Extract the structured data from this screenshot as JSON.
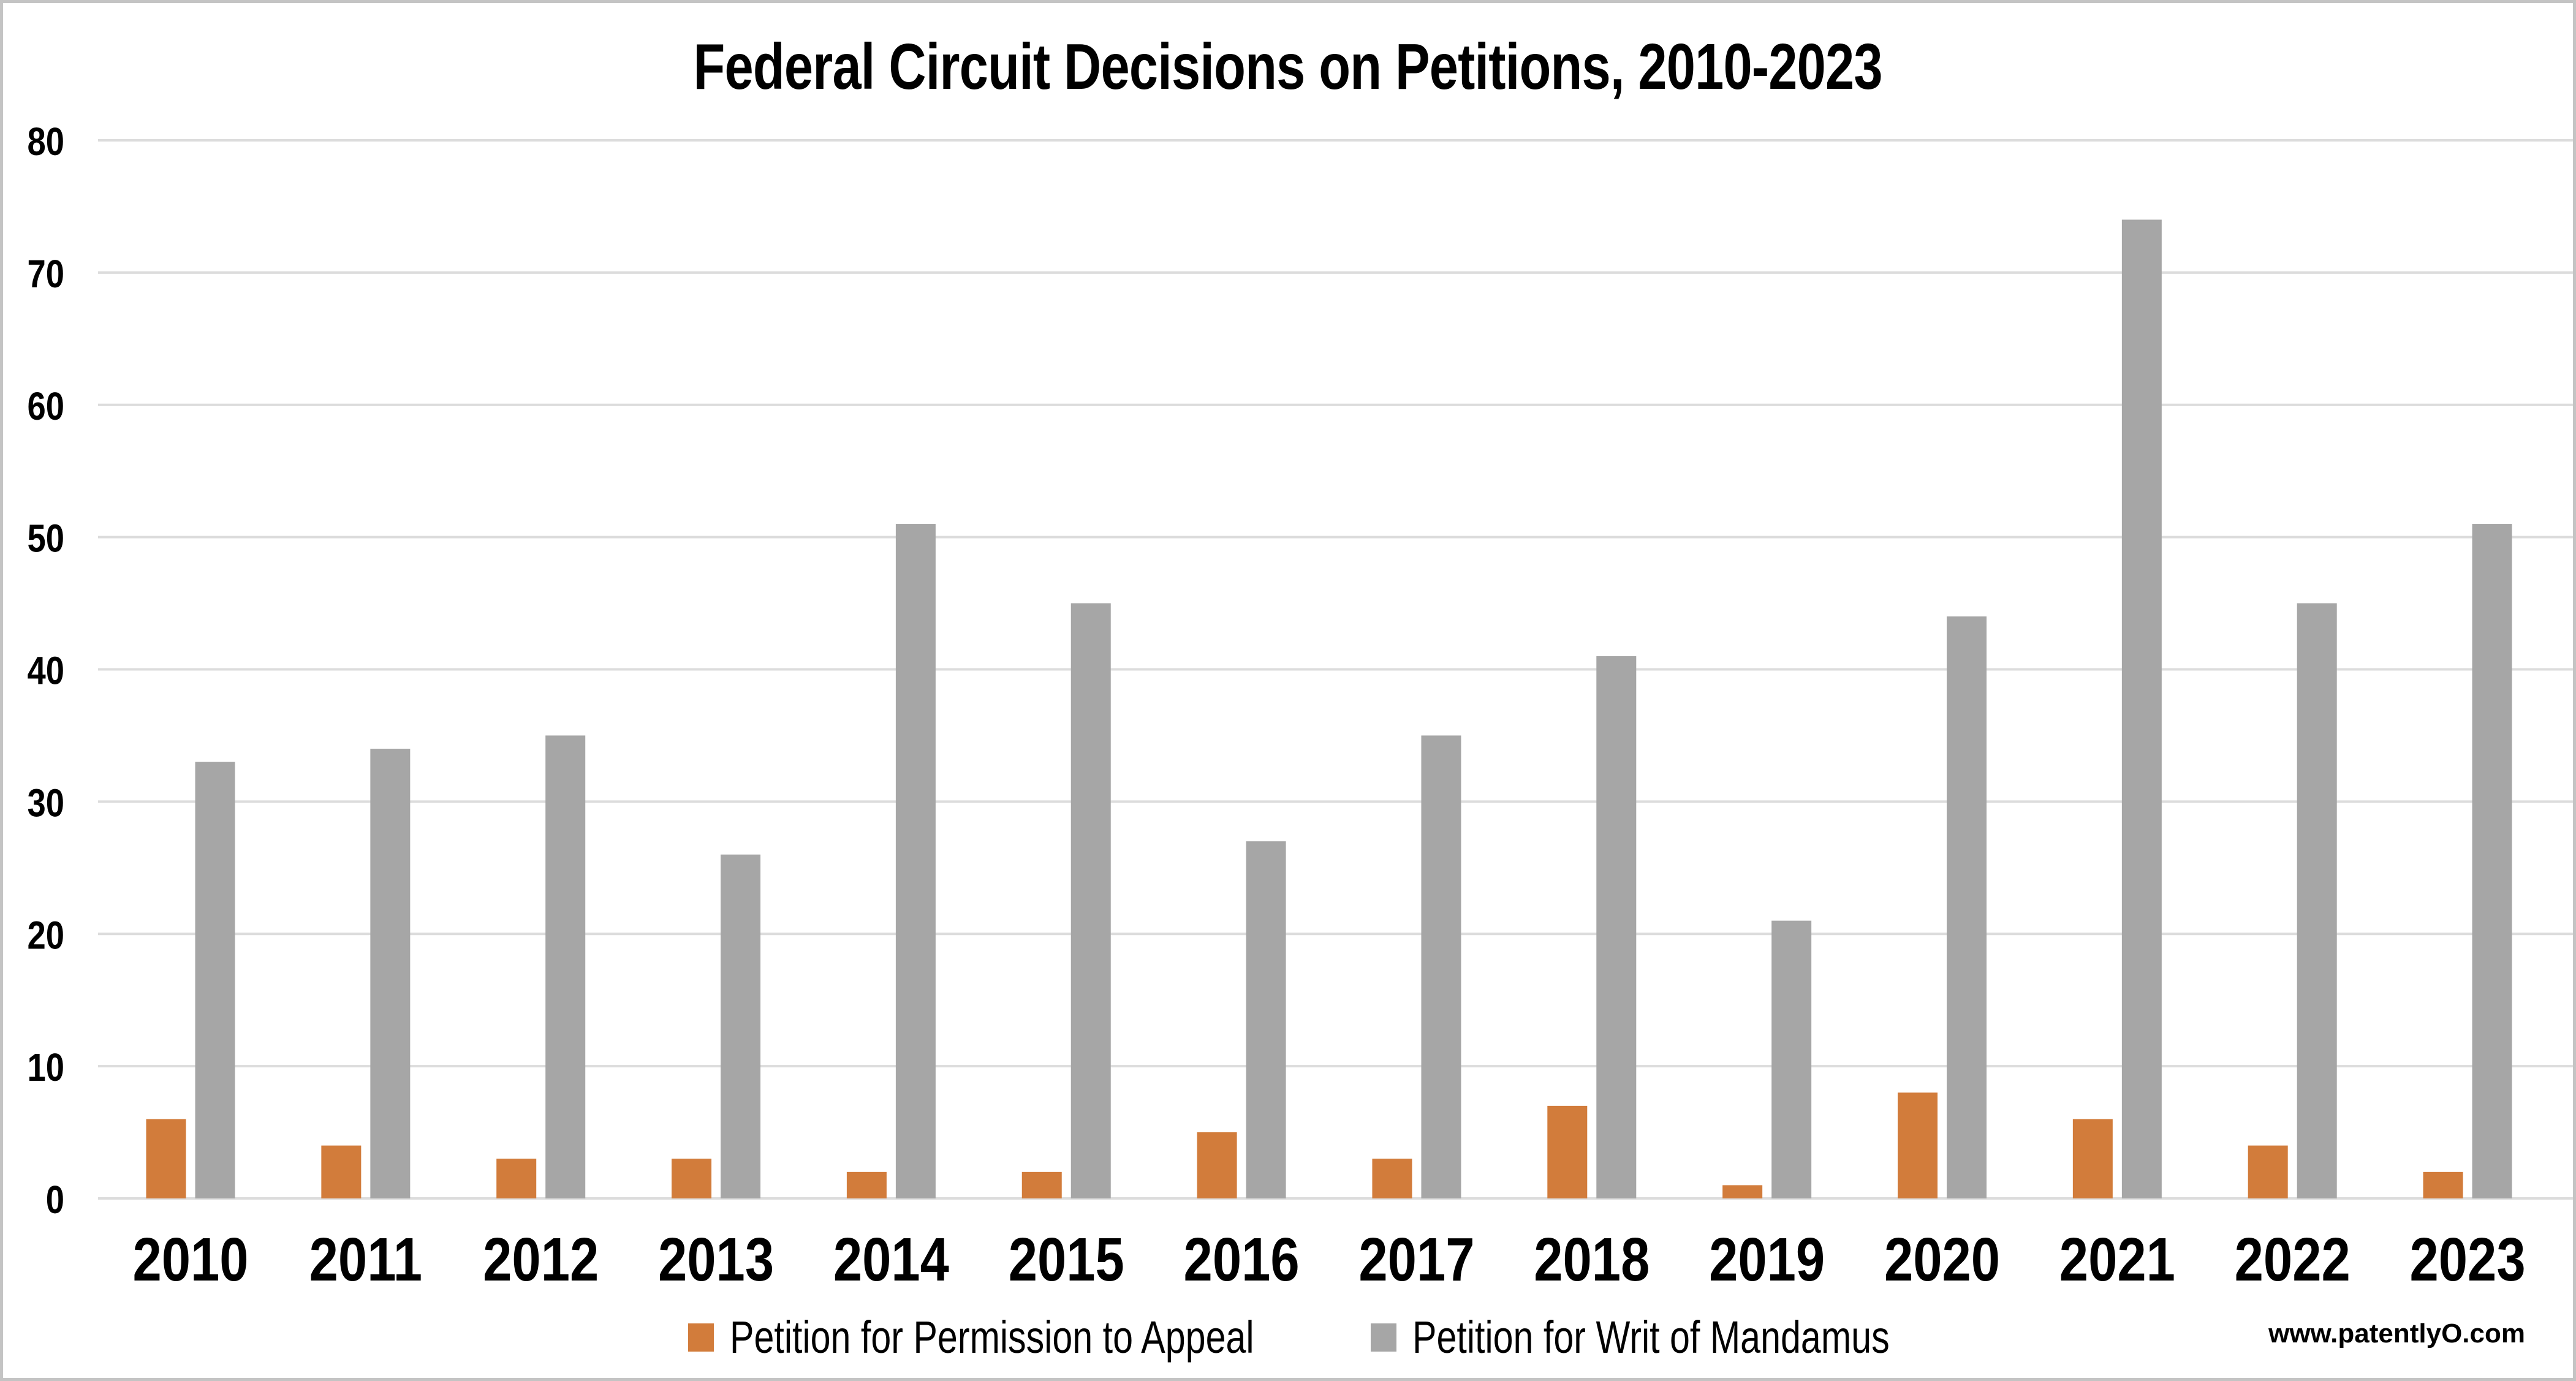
{
  "chart_data": {
    "type": "bar",
    "title": "Federal Circuit Decisions on Petitions, 2010-2023",
    "categories": [
      "2010",
      "2011",
      "2012",
      "2013",
      "2014",
      "2015",
      "2016",
      "2017",
      "2018",
      "2019",
      "2020",
      "2021",
      "2022",
      "2023"
    ],
    "series": [
      {
        "name": "Petition for Permission to Appeal",
        "color": "#D27C3B",
        "values": [
          6,
          4,
          3,
          3,
          2,
          2,
          5,
          3,
          7,
          1,
          8,
          6,
          4,
          2
        ]
      },
      {
        "name": "Petition for Writ of Mandamus",
        "color": "#A6A6A6",
        "values": [
          33,
          34,
          35,
          26,
          51,
          45,
          27,
          35,
          41,
          21,
          44,
          74,
          45,
          51
        ]
      }
    ],
    "xlabel": "",
    "ylabel": "",
    "ylim": [
      0,
      80
    ],
    "y_ticks": [
      0,
      10,
      20,
      30,
      40,
      50,
      60,
      70,
      80
    ],
    "grid": "horizontal-only",
    "legend_position": "bottom-center"
  },
  "watermark": "www.patentlyO.com",
  "colors": {
    "gridline": "#DCDCDC",
    "frame_border": "#C4C4C4",
    "text": "#000000",
    "background": "#FFFFFF"
  }
}
